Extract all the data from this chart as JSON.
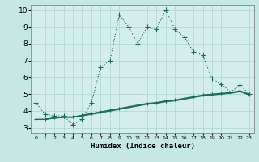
{
  "title": "",
  "xlabel": "Humidex (Indice chaleur)",
  "ylabel": "",
  "xlim": [
    -0.5,
    23.5
  ],
  "ylim": [
    2.7,
    10.3
  ],
  "yticks": [
    3,
    4,
    5,
    6,
    7,
    8,
    9,
    10
  ],
  "xticks": [
    0,
    1,
    2,
    3,
    4,
    5,
    6,
    7,
    8,
    9,
    10,
    11,
    12,
    13,
    14,
    15,
    16,
    17,
    18,
    19,
    20,
    21,
    22,
    23
  ],
  "background_color": "#c5e8e4",
  "plot_bg_color": "#d4eeeb",
  "line_color": "#1a6b5a",
  "grid_color": "#b0d5d0",
  "series": [
    {
      "x": [
        0,
        1,
        2,
        3,
        4,
        5,
        6,
        7,
        8,
        9,
        10,
        11,
        12,
        13,
        14,
        15,
        16,
        17,
        18,
        19,
        20,
        21,
        22,
        23
      ],
      "y": [
        4.5,
        3.8,
        3.7,
        3.7,
        3.2,
        3.5,
        4.5,
        6.6,
        7.0,
        9.7,
        9.0,
        8.0,
        9.0,
        8.85,
        10.0,
        8.85,
        8.4,
        7.5,
        7.3,
        5.9,
        5.6,
        5.1,
        5.55,
        5.0
      ],
      "style": "dotted",
      "marker": "+",
      "markersize": 4,
      "linewidth": 0.8
    },
    {
      "x": [
        0,
        1,
        2,
        3,
        4,
        5,
        6,
        7,
        8,
        9,
        10,
        11,
        12,
        13,
        14,
        15,
        16,
        17,
        18,
        19,
        20,
        21,
        22,
        23
      ],
      "y": [
        3.5,
        3.5,
        3.6,
        3.65,
        3.65,
        3.75,
        3.85,
        3.95,
        4.05,
        4.15,
        4.25,
        4.35,
        4.45,
        4.5,
        4.6,
        4.65,
        4.75,
        4.85,
        4.95,
        5.0,
        5.05,
        5.1,
        5.2,
        5.0
      ],
      "style": "solid",
      "marker": "+",
      "markersize": 3,
      "linewidth": 0.8
    },
    {
      "x": [
        0,
        1,
        2,
        3,
        4,
        5,
        6,
        7,
        8,
        9,
        10,
        11,
        12,
        13,
        14,
        15,
        16,
        17,
        18,
        19,
        20,
        21,
        22,
        23
      ],
      "y": [
        3.5,
        3.5,
        3.58,
        3.63,
        3.63,
        3.72,
        3.82,
        3.92,
        4.02,
        4.12,
        4.22,
        4.32,
        4.42,
        4.47,
        4.57,
        4.62,
        4.72,
        4.82,
        4.92,
        4.97,
        5.02,
        5.07,
        5.17,
        4.97
      ],
      "style": "solid",
      "marker": null,
      "markersize": 0,
      "linewidth": 0.7
    },
    {
      "x": [
        0,
        1,
        2,
        3,
        4,
        5,
        6,
        7,
        8,
        9,
        10,
        11,
        12,
        13,
        14,
        15,
        16,
        17,
        18,
        19,
        20,
        21,
        22,
        23
      ],
      "y": [
        3.5,
        3.5,
        3.56,
        3.61,
        3.61,
        3.7,
        3.79,
        3.89,
        3.99,
        4.09,
        4.19,
        4.29,
        4.39,
        4.44,
        4.54,
        4.59,
        4.69,
        4.79,
        4.89,
        4.94,
        4.99,
        5.04,
        5.14,
        4.94
      ],
      "style": "solid",
      "marker": null,
      "markersize": 0,
      "linewidth": 0.7
    }
  ]
}
